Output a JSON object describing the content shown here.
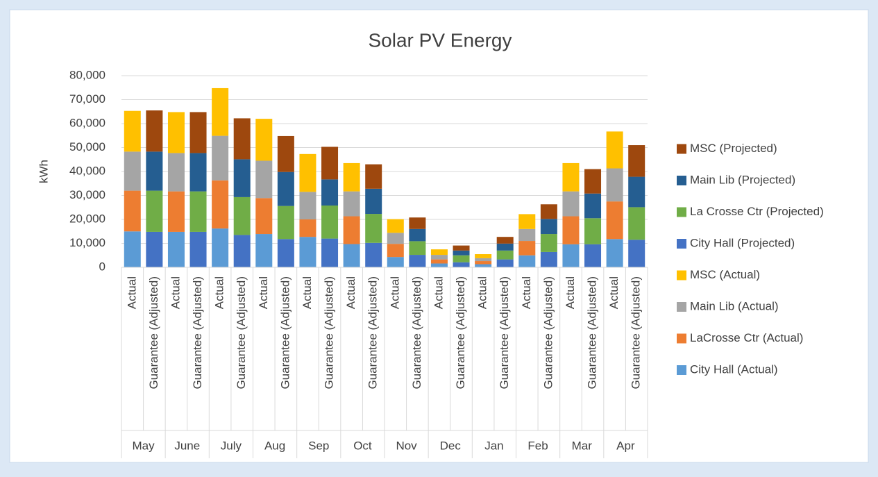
{
  "chart_data": {
    "type": "stacked_bar",
    "title": "Solar PV Energy",
    "y_label": "kWh",
    "categories": [
      "Actual",
      "Guarantee (Adjusted)",
      "Actual",
      "Guarantee (Adjusted)",
      "Actual",
      "Guarantee (Adjusted)",
      "Actual",
      "Guarantee (Adjusted)",
      "Actual",
      "Guarantee (Adjusted)",
      "Actual",
      "Guarantee (Adjusted)",
      "Actual",
      "Guarantee (Adjusted)",
      "Actual",
      "Guarantee (Adjusted)",
      "Actual",
      "Guarantee (Adjusted)",
      "Actual",
      "Guarantee (Adjusted)",
      "Actual",
      "Guarantee (Adjusted)",
      "Actual",
      "Guarantee (Adjusted)"
    ],
    "groups": [
      "May",
      "June",
      "July",
      "Aug",
      "Sep",
      "Oct",
      "Nov",
      "Dec",
      "Jan",
      "Feb",
      "Mar",
      "Apr"
    ],
    "series": [
      {
        "name": "City Hall (Actual)",
        "color": "#5b9bd5",
        "values": [
          15000,
          null,
          14800,
          null,
          16200,
          null,
          13900,
          null,
          12700,
          null,
          9700,
          null,
          4300,
          null,
          1600,
          null,
          1300,
          null,
          5000,
          null,
          9600,
          null,
          11800,
          null
        ]
      },
      {
        "name": "LaCrosse Ctr (Actual)",
        "color": "#ed7d31",
        "values": [
          17000,
          null,
          16900,
          null,
          20100,
          null,
          15000,
          null,
          7300,
          null,
          11600,
          null,
          5500,
          null,
          1700,
          null,
          1300,
          null,
          6000,
          null,
          11700,
          null,
          15700,
          null
        ]
      },
      {
        "name": "Main Lib (Actual)",
        "color": "#a5a5a5",
        "values": [
          16300,
          null,
          16000,
          null,
          18600,
          null,
          15600,
          null,
          11500,
          null,
          10400,
          null,
          4600,
          null,
          1900,
          null,
          1200,
          null,
          5000,
          null,
          10400,
          null,
          13800,
          null
        ]
      },
      {
        "name": "MSC (Actual)",
        "color": "#ffc000",
        "values": [
          17000,
          null,
          17100,
          null,
          19900,
          null,
          17500,
          null,
          15800,
          null,
          11800,
          null,
          5700,
          null,
          2300,
          null,
          1700,
          null,
          6200,
          null,
          11800,
          null,
          15400,
          null
        ]
      },
      {
        "name": "City Hall (Projected)",
        "color": "#4472c4",
        "values": [
          null,
          14800,
          null,
          14800,
          null,
          13500,
          null,
          11800,
          null,
          12000,
          null,
          10200,
          null,
          5200,
          null,
          2100,
          null,
          3300,
          null,
          6400,
          null,
          9600,
          null,
          11500
        ]
      },
      {
        "name": "La Crosse Ctr (Projected)",
        "color": "#70ad47",
        "values": [
          null,
          17200,
          null,
          16900,
          null,
          15800,
          null,
          13800,
          null,
          13800,
          null,
          12100,
          null,
          5700,
          null,
          2900,
          null,
          3700,
          null,
          7500,
          null,
          10900,
          null,
          13600
        ]
      },
      {
        "name": "Main Lib (Projected)",
        "color": "#255e91",
        "values": [
          null,
          16300,
          null,
          16000,
          null,
          15800,
          null,
          14200,
          null,
          10900,
          null,
          10500,
          null,
          5100,
          null,
          2000,
          null,
          2900,
          null,
          6300,
          null,
          10300,
          null,
          12700
        ]
      },
      {
        "name": "MSC (Projected)",
        "color": "#9e480e",
        "values": [
          null,
          17200,
          null,
          17100,
          null,
          17100,
          null,
          15000,
          null,
          13600,
          null,
          10200,
          null,
          4800,
          null,
          2100,
          null,
          2800,
          null,
          6100,
          null,
          10200,
          null,
          13200
        ]
      }
    ],
    "ylim": [
      0,
      80000
    ],
    "yticks": [
      0,
      {
        "value": 10000,
        "label": "10,000"
      },
      {
        "value": 20000,
        "label": "20,000"
      },
      {
        "value": 30000,
        "label": "30,000"
      },
      {
        "value": 40000,
        "label": "40,000"
      },
      {
        "value": 50000,
        "label": "50,000"
      },
      {
        "value": 60000,
        "label": "60,000"
      },
      {
        "value": 70000,
        "label": "70,000"
      },
      {
        "value": 80000,
        "label": "80,000"
      }
    ],
    "grid": true,
    "legend": "right"
  }
}
